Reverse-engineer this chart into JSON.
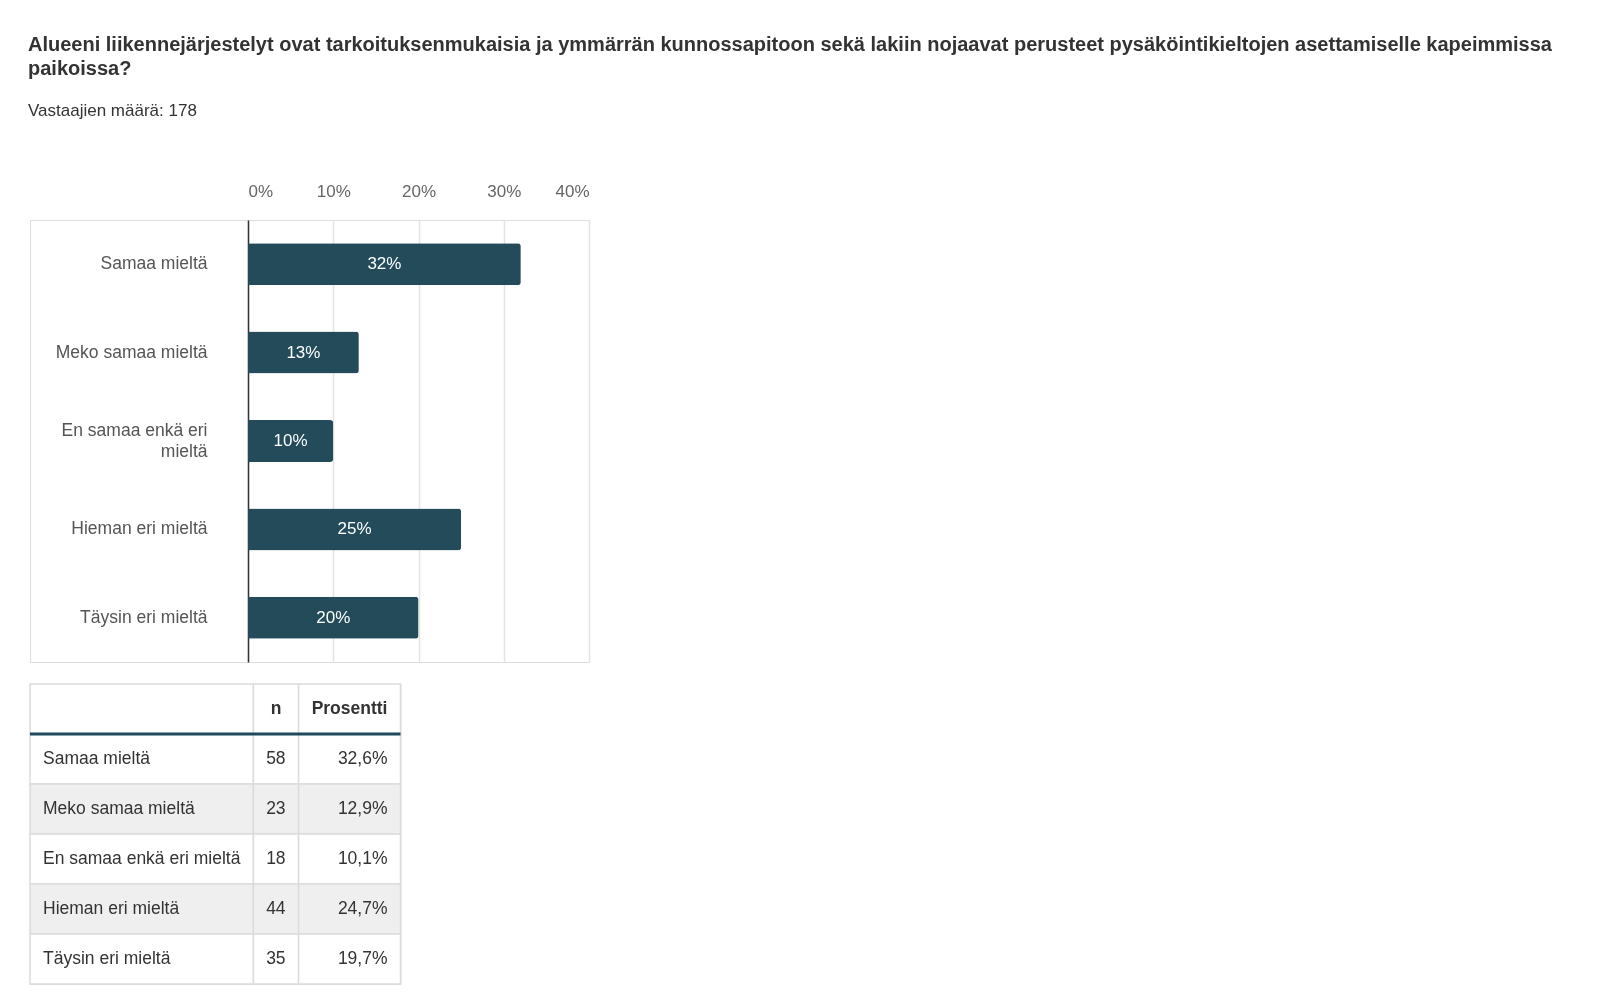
{
  "chart_data": [
    {
      "type": "bar",
      "orientation": "horizontal",
      "title": "Alueeni liikennejärjestelyt ovat tarkoituksenmukaisia ja ymmärrän kunnossapitoon sekä lakiin nojaavat perusteet pysäköintikieltojen asettamiselle kapeimmissa paikoissa?",
      "subtitle": "Vastaajien määrä: 178",
      "categories": [
        "Samaa mieltä",
        "Meko samaa mieltä",
        "En samaa enkä eri mieltä",
        "Hieman eri mieltä",
        "Täysin eri mieltä"
      ],
      "values": [
        32,
        13,
        10,
        25,
        20
      ],
      "value_labels": [
        "32%",
        "13%",
        "10%",
        "25%",
        "20%"
      ],
      "color": "#234b5a",
      "xlim": [
        0,
        40
      ],
      "xticks": [
        {
          "value": 0,
          "label": "0%"
        },
        {
          "value": 10,
          "label": "10%"
        },
        {
          "value": 20,
          "label": "20%"
        },
        {
          "value": 30,
          "label": "30%"
        },
        {
          "value": 40,
          "label": "40%"
        }
      ],
      "grid": "x"
    },
    {
      "type": "other",
      "data_labels": true,
      "categories": [
        "Samaa mieltä",
        "Meko samaa mieltä",
        "En samaa enkä eri mieltä",
        "Hieman eri mieltä",
        "Täysin eri mieltä"
      ],
      "series": [
        {
          "name": "n",
          "values": [
            58,
            23,
            18,
            44,
            35
          ],
          "colors": [
            "#ffffff",
            "#efefef",
            "#ffffff",
            "#efefef",
            "#ffffff"
          ]
        },
        {
          "name": "Prosentti",
          "values": [
            32.6,
            12.9,
            10.1,
            24.7,
            19.7
          ],
          "value_labels": [
            "32,6%",
            "12,9%",
            "10,1%",
            "24,7%",
            "19,7%"
          ],
          "colors": [
            "#ffffff",
            "#efefef",
            "#ffffff",
            "#efefef",
            "#ffffff"
          ]
        }
      ]
    }
  ]
}
